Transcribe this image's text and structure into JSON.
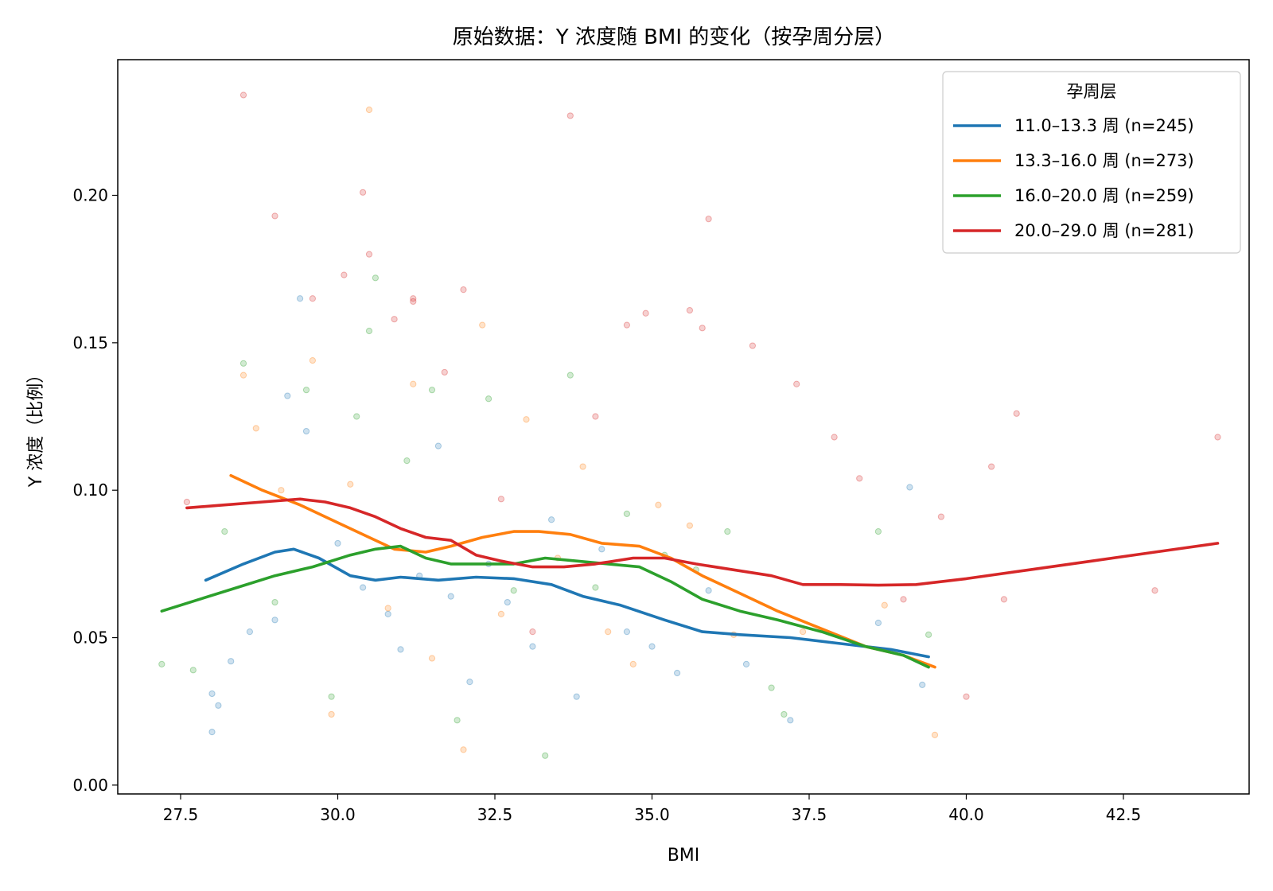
{
  "chart_data": {
    "type": "scatter",
    "title": "原始数据：Y 浓度随 BMI 的变化（按孕周分层）",
    "xlabel": "BMI",
    "ylabel": "Y 浓度（比例）",
    "xlim": [
      26.5,
      44.5
    ],
    "ylim": [
      -0.003,
      0.246
    ],
    "xticks": [
      27.5,
      30.0,
      32.5,
      35.0,
      37.5,
      40.0,
      42.5
    ],
    "xtick_labels": [
      "27.5",
      "30.0",
      "32.5",
      "35.0",
      "37.5",
      "40.0",
      "42.5"
    ],
    "yticks": [
      0.0,
      0.05,
      0.1,
      0.15,
      0.2
    ],
    "ytick_labels": [
      "0.00",
      "0.05",
      "0.10",
      "0.15",
      "0.20"
    ],
    "grid": false,
    "legend": {
      "title": "孕周层",
      "position": "top-right"
    },
    "series": [
      {
        "name": "11.0–13.3 周 (n=245)",
        "color": "#1f77b4",
        "trend": [
          [
            27.9,
            0.0695
          ],
          [
            28.5,
            0.075
          ],
          [
            29.0,
            0.079
          ],
          [
            29.3,
            0.08
          ],
          [
            29.7,
            0.077
          ],
          [
            30.2,
            0.071
          ],
          [
            30.6,
            0.0695
          ],
          [
            31.0,
            0.0705
          ],
          [
            31.6,
            0.0695
          ],
          [
            32.2,
            0.0705
          ],
          [
            32.8,
            0.07
          ],
          [
            33.4,
            0.068
          ],
          [
            33.9,
            0.064
          ],
          [
            34.5,
            0.061
          ],
          [
            35.2,
            0.056
          ],
          [
            35.8,
            0.052
          ],
          [
            36.4,
            0.051
          ],
          [
            37.2,
            0.05
          ],
          [
            38.0,
            0.048
          ],
          [
            38.8,
            0.046
          ],
          [
            39.4,
            0.0435
          ]
        ],
        "points": [
          [
            28.0,
            0.031
          ],
          [
            28.0,
            0.018
          ],
          [
            28.1,
            0.027
          ],
          [
            28.3,
            0.042
          ],
          [
            28.6,
            0.052
          ],
          [
            29.0,
            0.056
          ],
          [
            29.2,
            0.132
          ],
          [
            29.4,
            0.165
          ],
          [
            29.5,
            0.12
          ],
          [
            30.0,
            0.082
          ],
          [
            30.4,
            0.067
          ],
          [
            30.8,
            0.058
          ],
          [
            31.0,
            0.046
          ],
          [
            31.3,
            0.071
          ],
          [
            31.6,
            0.115
          ],
          [
            31.8,
            0.064
          ],
          [
            32.1,
            0.035
          ],
          [
            32.4,
            0.075
          ],
          [
            32.7,
            0.062
          ],
          [
            33.1,
            0.047
          ],
          [
            33.4,
            0.09
          ],
          [
            33.8,
            0.03
          ],
          [
            34.2,
            0.08
          ],
          [
            34.6,
            0.052
          ],
          [
            35.0,
            0.047
          ],
          [
            35.4,
            0.038
          ],
          [
            35.9,
            0.066
          ],
          [
            36.5,
            0.041
          ],
          [
            37.2,
            0.022
          ],
          [
            38.6,
            0.055
          ],
          [
            39.1,
            0.101
          ],
          [
            39.3,
            0.034
          ]
        ]
      },
      {
        "name": "13.3–16.0 周 (n=273)",
        "color": "#ff7f0e",
        "trend": [
          [
            28.3,
            0.105
          ],
          [
            28.8,
            0.1
          ],
          [
            29.4,
            0.095
          ],
          [
            30.0,
            0.089
          ],
          [
            30.5,
            0.084
          ],
          [
            30.9,
            0.08
          ],
          [
            31.4,
            0.079
          ],
          [
            31.8,
            0.081
          ],
          [
            32.3,
            0.084
          ],
          [
            32.8,
            0.086
          ],
          [
            33.2,
            0.086
          ],
          [
            33.7,
            0.085
          ],
          [
            34.2,
            0.082
          ],
          [
            34.8,
            0.081
          ],
          [
            35.3,
            0.077
          ],
          [
            35.8,
            0.071
          ],
          [
            36.4,
            0.065
          ],
          [
            37.0,
            0.059
          ],
          [
            37.7,
            0.053
          ],
          [
            38.4,
            0.047
          ],
          [
            39.0,
            0.044
          ],
          [
            39.5,
            0.04
          ]
        ],
        "points": [
          [
            28.5,
            0.139
          ],
          [
            28.7,
            0.121
          ],
          [
            29.1,
            0.1
          ],
          [
            29.6,
            0.144
          ],
          [
            29.9,
            0.024
          ],
          [
            30.2,
            0.102
          ],
          [
            30.5,
            0.229
          ],
          [
            30.8,
            0.06
          ],
          [
            31.2,
            0.136
          ],
          [
            31.5,
            0.043
          ],
          [
            32.0,
            0.012
          ],
          [
            32.3,
            0.156
          ],
          [
            32.6,
            0.058
          ],
          [
            33.0,
            0.124
          ],
          [
            33.5,
            0.077
          ],
          [
            33.9,
            0.108
          ],
          [
            34.3,
            0.052
          ],
          [
            34.7,
            0.041
          ],
          [
            35.1,
            0.095
          ],
          [
            35.6,
            0.088
          ],
          [
            36.3,
            0.051
          ],
          [
            37.4,
            0.052
          ],
          [
            38.7,
            0.061
          ],
          [
            39.5,
            0.017
          ]
        ]
      },
      {
        "name": "16.0–20.0 周 (n=259)",
        "color": "#2ca02c",
        "trend": [
          [
            27.2,
            0.059
          ],
          [
            27.8,
            0.063
          ],
          [
            28.4,
            0.067
          ],
          [
            29.0,
            0.071
          ],
          [
            29.6,
            0.074
          ],
          [
            30.2,
            0.078
          ],
          [
            30.6,
            0.08
          ],
          [
            31.0,
            0.081
          ],
          [
            31.4,
            0.077
          ],
          [
            31.8,
            0.075
          ],
          [
            32.3,
            0.075
          ],
          [
            32.8,
            0.075
          ],
          [
            33.3,
            0.077
          ],
          [
            33.8,
            0.076
          ],
          [
            34.3,
            0.075
          ],
          [
            34.8,
            0.074
          ],
          [
            35.3,
            0.069
          ],
          [
            35.8,
            0.063
          ],
          [
            36.4,
            0.059
          ],
          [
            37.0,
            0.056
          ],
          [
            37.7,
            0.052
          ],
          [
            38.4,
            0.047
          ],
          [
            39.0,
            0.044
          ],
          [
            39.4,
            0.04
          ]
        ],
        "points": [
          [
            27.2,
            0.041
          ],
          [
            27.7,
            0.039
          ],
          [
            28.2,
            0.086
          ],
          [
            28.5,
            0.143
          ],
          [
            29.0,
            0.062
          ],
          [
            29.5,
            0.134
          ],
          [
            29.9,
            0.03
          ],
          [
            30.3,
            0.125
          ],
          [
            30.5,
            0.154
          ],
          [
            30.6,
            0.172
          ],
          [
            31.1,
            0.11
          ],
          [
            31.5,
            0.134
          ],
          [
            31.9,
            0.022
          ],
          [
            32.4,
            0.131
          ],
          [
            32.8,
            0.066
          ],
          [
            33.3,
            0.01
          ],
          [
            33.7,
            0.139
          ],
          [
            34.1,
            0.067
          ],
          [
            34.6,
            0.092
          ],
          [
            35.2,
            0.078
          ],
          [
            35.7,
            0.073
          ],
          [
            36.2,
            0.086
          ],
          [
            36.9,
            0.033
          ],
          [
            37.1,
            0.024
          ],
          [
            38.6,
            0.086
          ],
          [
            39.4,
            0.051
          ]
        ]
      },
      {
        "name": "20.0–29.0 周 (n=281)",
        "color": "#d62728",
        "trend": [
          [
            27.6,
            0.094
          ],
          [
            28.2,
            0.095
          ],
          [
            28.8,
            0.096
          ],
          [
            29.4,
            0.097
          ],
          [
            29.8,
            0.096
          ],
          [
            30.2,
            0.094
          ],
          [
            30.6,
            0.091
          ],
          [
            31.0,
            0.087
          ],
          [
            31.4,
            0.084
          ],
          [
            31.8,
            0.083
          ],
          [
            32.2,
            0.078
          ],
          [
            32.6,
            0.076
          ],
          [
            33.1,
            0.074
          ],
          [
            33.6,
            0.074
          ],
          [
            34.1,
            0.075
          ],
          [
            34.7,
            0.077
          ],
          [
            35.2,
            0.077
          ],
          [
            35.7,
            0.075
          ],
          [
            36.3,
            0.073
          ],
          [
            36.9,
            0.071
          ],
          [
            37.4,
            0.068
          ],
          [
            38.0,
            0.068
          ],
          [
            38.6,
            0.0678
          ],
          [
            39.2,
            0.068
          ],
          [
            40.0,
            0.07
          ],
          [
            41.0,
            0.073
          ],
          [
            42.0,
            0.076
          ],
          [
            43.0,
            0.079
          ],
          [
            44.0,
            0.082
          ]
        ],
        "points": [
          [
            27.6,
            0.096
          ],
          [
            28.5,
            0.234
          ],
          [
            29.0,
            0.193
          ],
          [
            29.6,
            0.165
          ],
          [
            30.1,
            0.173
          ],
          [
            30.4,
            0.201
          ],
          [
            30.5,
            0.18
          ],
          [
            30.9,
            0.158
          ],
          [
            31.2,
            0.165
          ],
          [
            31.2,
            0.164
          ],
          [
            31.7,
            0.14
          ],
          [
            32.0,
            0.168
          ],
          [
            32.6,
            0.097
          ],
          [
            33.1,
            0.052
          ],
          [
            33.7,
            0.227
          ],
          [
            34.1,
            0.125
          ],
          [
            34.6,
            0.156
          ],
          [
            34.9,
            0.16
          ],
          [
            35.6,
            0.161
          ],
          [
            35.8,
            0.155
          ],
          [
            35.9,
            0.192
          ],
          [
            36.6,
            0.149
          ],
          [
            37.3,
            0.136
          ],
          [
            37.9,
            0.118
          ],
          [
            38.3,
            0.104
          ],
          [
            39.0,
            0.063
          ],
          [
            39.6,
            0.091
          ],
          [
            40.0,
            0.03
          ],
          [
            40.4,
            0.108
          ],
          [
            40.8,
            0.126
          ],
          [
            40.6,
            0.063
          ],
          [
            43.0,
            0.066
          ],
          [
            44.0,
            0.118
          ]
        ]
      }
    ]
  }
}
